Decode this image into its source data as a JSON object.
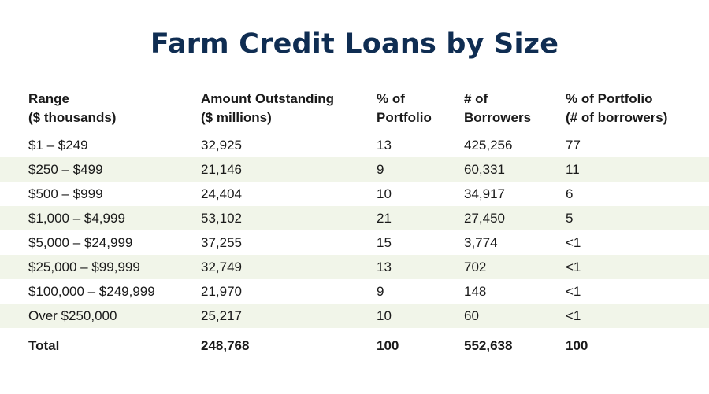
{
  "chart_data": {
    "type": "table",
    "title": "Farm Credit Loans by Size",
    "columns": [
      [
        "Range",
        "($ thousands)"
      ],
      [
        "Amount Outstanding",
        "($ millions)"
      ],
      [
        "% of",
        "Portfolio"
      ],
      [
        "# of",
        "Borrowers"
      ],
      [
        "% of Portfolio",
        "(# of borrowers)"
      ]
    ],
    "rows": [
      [
        "$1 – $249",
        "32,925",
        "13",
        "425,256",
        "77"
      ],
      [
        "$250 – $499",
        "21,146",
        "9",
        "60,331",
        "11"
      ],
      [
        "$500 – $999",
        "24,404",
        "10",
        "34,917",
        "6"
      ],
      [
        "$1,000 – $4,999",
        "53,102",
        "21",
        "27,450",
        "5"
      ],
      [
        "$5,000 – $24,999",
        "37,255",
        "15",
        "3,774",
        "<1"
      ],
      [
        "$25,000 – $99,999",
        "32,749",
        "13",
        "702",
        "<1"
      ],
      [
        "$100,000 – $249,999",
        "21,970",
        "9",
        "148",
        "<1"
      ],
      [
        "Over $250,000",
        "25,217",
        "10",
        "60",
        "<1"
      ]
    ],
    "total": [
      "Total",
      "248,768",
      "100",
      "552,638",
      "100"
    ]
  },
  "colors": {
    "title": "#0f2d52",
    "row_shade": "#f1f5e9",
    "text": "#1a1a1a"
  }
}
